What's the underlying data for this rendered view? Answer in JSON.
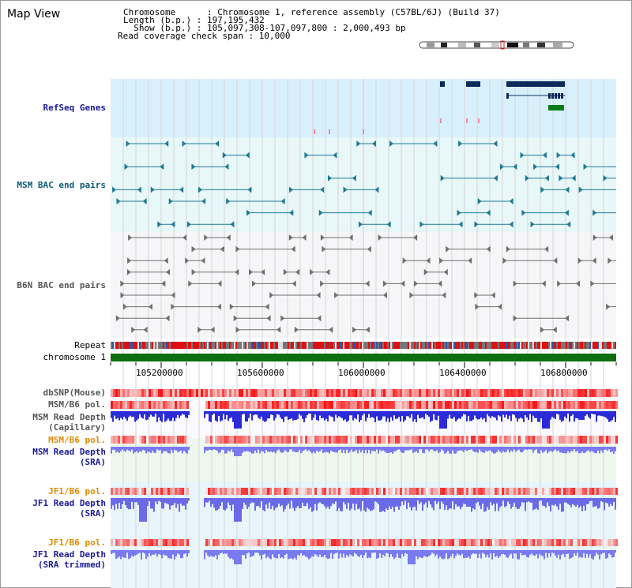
{
  "page": {
    "title": "Map View"
  },
  "info": {
    "chromosome": "Chromosome      : Chromosome 1, reference assembly (C57BL/6J) (Build 37)",
    "length": "Length (b.p.) : 197,195,432",
    "show": "  Show (b.p.) : 105,097,308-107,097,800 : 2,000,493 bp",
    "coverage": "Read coverage check span : 10,000"
  },
  "tracks": {
    "refseq": "RefSeq Genes",
    "msm_bac": "MSM BAC end pairs",
    "b6n_bac": "B6N BAC end pairs",
    "repeat": "Repeat",
    "chromosome": "chromosome 1",
    "dbsnp": "dbSNP(Mouse)",
    "msm_b6_pol": "MSM/B6 pol.",
    "msm_depth_cap_1": "MSM Read Depth",
    "msm_depth_cap_2": "(Capillary)",
    "msm_b6_pol2": "MSM/B6 pol.",
    "msm_depth_sra_1": "MSM Read Depth",
    "msm_depth_sra_2": "(SRA)",
    "jf1_pol": "JF1/B6 pol.",
    "jf1_depth_1": "JF1 Read Depth",
    "jf1_depth_2": "(SRA)",
    "jf1_pol2": "JF1/B6 pol.",
    "jf1_trim_1": "JF1 Read Depth",
    "jf1_trim_2": "(SRA trimmed)"
  },
  "axis": {
    "ticks": [
      "105200000",
      "105600000",
      "106000000",
      "106400000",
      "106800000"
    ]
  },
  "colors": {
    "refseq_bg": "#d8f0fb",
    "bac_bg": "#e8f7f8",
    "gene_navy": "#0c2a5a",
    "gene_green": "#0a7a1a",
    "msm_teal": "#1f7a94",
    "b6n_grey": "#6f6f6f",
    "chrom_green": "#0f6e12",
    "depth_blue": "#3a3aee",
    "pol_red": "#e02020"
  }
}
